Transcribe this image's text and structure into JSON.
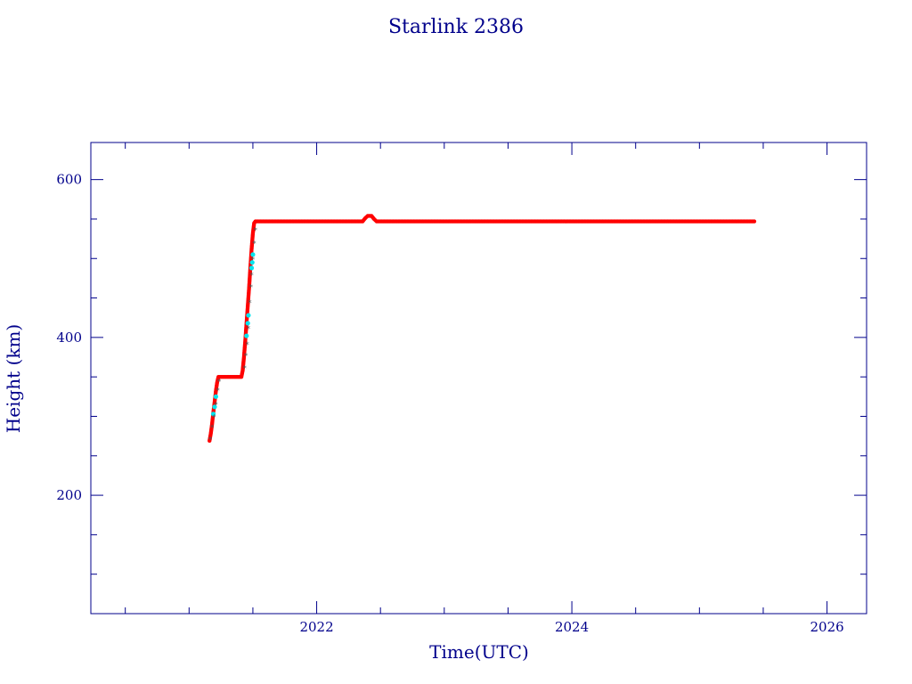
{
  "chart_data": {
    "type": "scatter",
    "title": "Starlink 2386",
    "xlabel": "Time(UTC)",
    "ylabel": "Height (km)",
    "xlim": [
      2020.23,
      2026.31
    ],
    "ylim": [
      50,
      647
    ],
    "x_major_ticks": [
      2022,
      2024,
      2026
    ],
    "x_major_tick_labels": [
      "2022",
      "2024",
      "2026"
    ],
    "x_minor_step": 0.5,
    "y_major_ticks": [
      200,
      400,
      600
    ],
    "y_major_tick_labels": [
      "200",
      "400",
      "600"
    ],
    "y_minor_step": 50,
    "grid": false,
    "colors": {
      "axis": "#00008b",
      "main_series": "#ff0000",
      "raising_series": "#00e5ee",
      "star_marker": "#555555"
    },
    "series": [
      {
        "color": "#ff0000",
        "marker": "dot",
        "points": [
          [
            2021.16,
            269
          ],
          [
            2021.17,
            278
          ],
          [
            2021.18,
            290
          ],
          [
            2021.19,
            305
          ],
          [
            2021.2,
            318
          ],
          [
            2021.21,
            332
          ],
          [
            2021.22,
            343
          ],
          [
            2021.23,
            350
          ],
          [
            2021.26,
            350
          ],
          [
            2021.3,
            350
          ],
          [
            2021.34,
            350
          ],
          [
            2021.38,
            350
          ],
          [
            2021.41,
            350
          ],
          [
            2021.42,
            358
          ],
          [
            2021.43,
            375
          ],
          [
            2021.44,
            395
          ],
          [
            2021.45,
            418
          ],
          [
            2021.46,
            440
          ],
          [
            2021.47,
            462
          ],
          [
            2021.48,
            488
          ],
          [
            2021.49,
            512
          ],
          [
            2021.5,
            532
          ],
          [
            2021.51,
            545
          ],
          [
            2021.52,
            547
          ],
          [
            2021.6,
            547
          ],
          [
            2021.8,
            547
          ],
          [
            2022.0,
            547
          ],
          [
            2022.2,
            547
          ],
          [
            2022.36,
            547
          ],
          [
            2022.38,
            551
          ],
          [
            2022.4,
            554
          ],
          [
            2022.43,
            554
          ],
          [
            2022.45,
            550
          ],
          [
            2022.47,
            547
          ],
          [
            2022.6,
            547
          ],
          [
            2022.8,
            547
          ],
          [
            2023.0,
            547
          ],
          [
            2023.2,
            547
          ],
          [
            2023.4,
            547
          ],
          [
            2023.6,
            547
          ],
          [
            2023.8,
            547
          ],
          [
            2024.0,
            547
          ],
          [
            2024.2,
            547
          ],
          [
            2024.4,
            547
          ],
          [
            2024.6,
            547
          ],
          [
            2024.8,
            547
          ],
          [
            2025.0,
            547
          ],
          [
            2025.2,
            547
          ],
          [
            2025.4,
            547
          ],
          [
            2025.43,
            547
          ]
        ]
      },
      {
        "color": "#00e5ee",
        "marker": "dot",
        "points": [
          [
            2021.19,
            303
          ],
          [
            2021.2,
            312
          ],
          [
            2021.21,
            325
          ],
          [
            2021.45,
            402
          ],
          [
            2021.46,
            418
          ],
          [
            2021.465,
            428
          ],
          [
            2021.49,
            488
          ],
          [
            2021.495,
            495
          ],
          [
            2021.5,
            505
          ]
        ]
      },
      {
        "color": "#555555",
        "marker": "star",
        "points": [
          [
            2021.165,
            272
          ],
          [
            2021.18,
            287
          ],
          [
            2021.195,
            300
          ],
          [
            2021.21,
            316
          ],
          [
            2021.225,
            334
          ],
          [
            2021.235,
            345
          ],
          [
            2021.435,
            362
          ],
          [
            2021.445,
            378
          ],
          [
            2021.455,
            392
          ],
          [
            2021.465,
            412
          ],
          [
            2021.475,
            445
          ],
          [
            2021.485,
            465
          ],
          [
            2021.49,
            480
          ],
          [
            2021.5,
            500
          ],
          [
            2021.51,
            520
          ],
          [
            2021.52,
            537
          ]
        ]
      }
    ]
  }
}
